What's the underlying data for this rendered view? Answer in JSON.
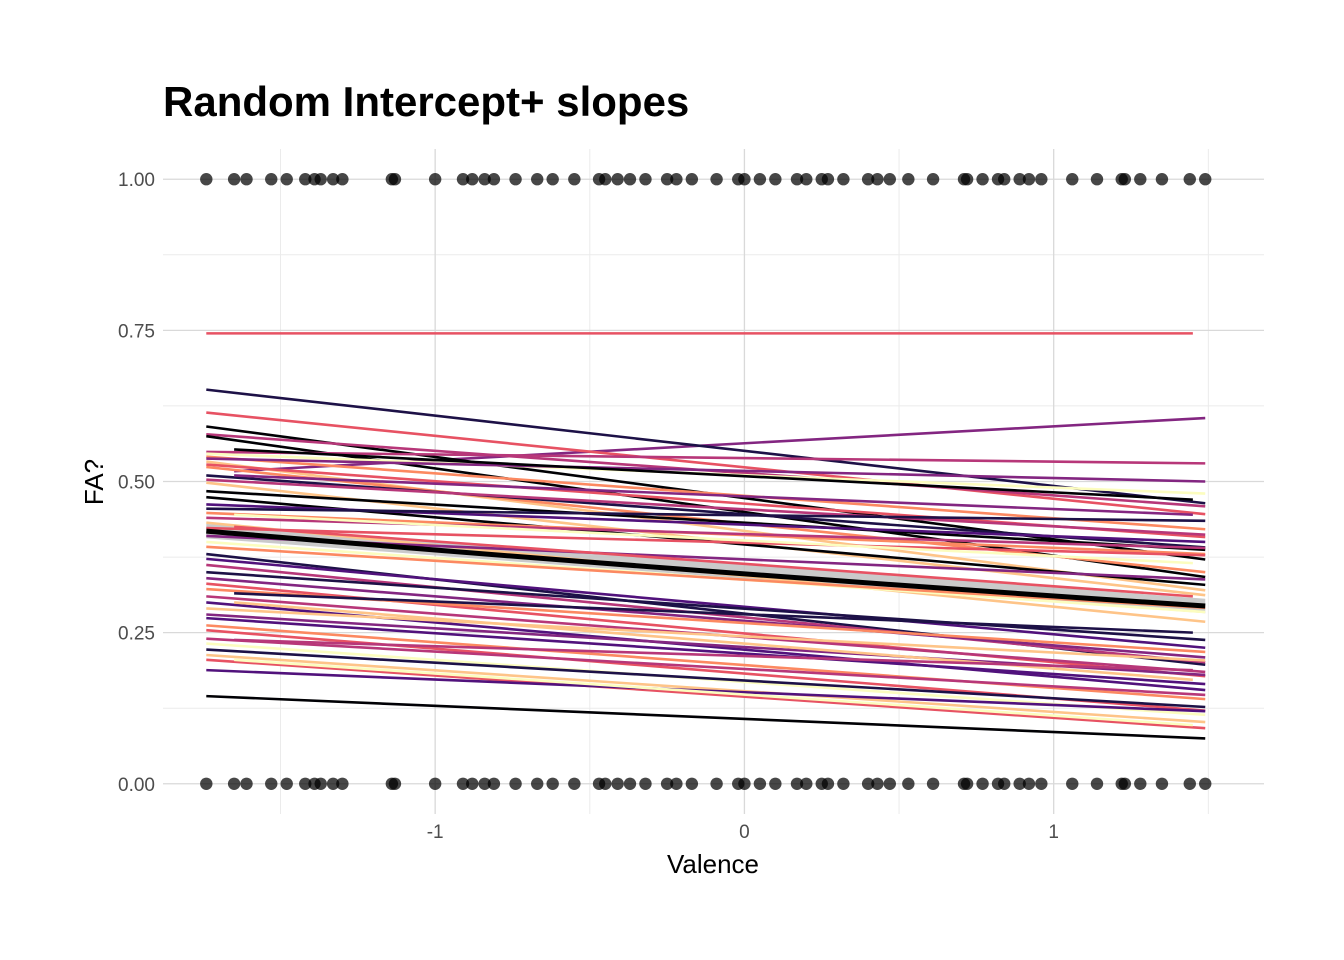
{
  "chart_data": {
    "type": "line",
    "title": "Random Intercept+ slopes",
    "xlabel": "Valence",
    "ylabel": "FA?",
    "xlim": [
      -1.88,
      1.68
    ],
    "ylim": [
      -0.05,
      1.05
    ],
    "x_ticks": [
      "-1",
      "0",
      "1"
    ],
    "x_tick_values": [
      -1,
      0,
      1
    ],
    "y_ticks": [
      "0.00",
      "0.25",
      "0.50",
      "0.75",
      "1.00"
    ],
    "y_tick_values": [
      0,
      0.25,
      0.5,
      0.75,
      1
    ],
    "grid": true,
    "legend": "none",
    "palette": [
      "#000004",
      "#1d1147",
      "#51127c",
      "#832681",
      "#b73779",
      "#e75263",
      "#fc8961",
      "#fec488",
      "#fcfdbf"
    ],
    "points_x": [
      -1.74,
      -1.65,
      -1.61,
      -1.53,
      -1.48,
      -1.42,
      -1.39,
      -1.37,
      -1.33,
      -1.3,
      -1.14,
      -1.13,
      -1.0,
      -0.91,
      -0.88,
      -0.84,
      -0.81,
      -0.74,
      -0.67,
      -0.62,
      -0.55,
      -0.47,
      -0.45,
      -0.41,
      -0.37,
      -0.32,
      -0.25,
      -0.22,
      -0.17,
      -0.09,
      -0.02,
      -0.0,
      0.05,
      0.1,
      0.17,
      0.2,
      0.25,
      0.27,
      0.32,
      0.4,
      0.43,
      0.47,
      0.53,
      0.61,
      0.71,
      0.72,
      0.77,
      0.82,
      0.84,
      0.89,
      0.92,
      0.96,
      1.06,
      1.14,
      1.22,
      1.23,
      1.28,
      1.35,
      1.44,
      1.49
    ],
    "points_y_values": [
      0,
      1
    ],
    "fixed_effect": {
      "x_range": [
        -1.74,
        1.49
      ],
      "y": [
        0.418,
        0.294
      ],
      "band": 0.012
    },
    "random_lines": [
      {
        "x0": -1.74,
        "x1": 1.45,
        "y0": 0.745,
        "y1": 0.745,
        "color": "#e75263"
      },
      {
        "x0": -1.65,
        "x1": 1.49,
        "y0": 0.517,
        "y1": 0.605,
        "color": "#832681"
      },
      {
        "x0": -1.74,
        "x1": 1.49,
        "y0": 0.652,
        "y1": 0.464,
        "color": "#1d1147"
      },
      {
        "x0": -1.74,
        "x1": 1.49,
        "y0": 0.614,
        "y1": 0.446,
        "color": "#e75263"
      },
      {
        "x0": -1.74,
        "x1": 1.49,
        "y0": 0.591,
        "y1": 0.371,
        "color": "#000004"
      },
      {
        "x0": -1.74,
        "x1": 1.49,
        "y0": 0.578,
        "y1": 0.459,
        "color": "#b73779"
      },
      {
        "x0": -1.74,
        "x1": 1.49,
        "y0": 0.575,
        "y1": 0.342,
        "color": "#000004"
      },
      {
        "x0": -1.74,
        "x1": 1.49,
        "y0": 0.549,
        "y1": 0.53,
        "color": "#b73779"
      },
      {
        "x0": -1.74,
        "x1": 1.49,
        "y0": 0.546,
        "y1": 0.48,
        "color": "#fcfdbf"
      },
      {
        "x0": -1.74,
        "x1": 1.49,
        "y0": 0.541,
        "y1": 0.421,
        "color": "#fc8961"
      },
      {
        "x0": -1.74,
        "x1": 1.49,
        "y0": 0.538,
        "y1": 0.5,
        "color": "#832681"
      },
      {
        "x0": -1.74,
        "x1": 1.49,
        "y0": 0.533,
        "y1": 0.32,
        "color": "#fec488"
      },
      {
        "x0": -1.74,
        "x1": 1.49,
        "y0": 0.528,
        "y1": 0.408,
        "color": "#e75263"
      },
      {
        "x0": -1.74,
        "x1": 1.49,
        "y0": 0.524,
        "y1": 0.35,
        "color": "#fc8961"
      },
      {
        "x0": -1.74,
        "x1": 1.49,
        "y0": 0.51,
        "y1": 0.391,
        "color": "#1d1147"
      },
      {
        "x0": -1.74,
        "x1": 1.49,
        "y0": 0.503,
        "y1": 0.412,
        "color": "#b73779"
      },
      {
        "x0": -1.74,
        "x1": 1.49,
        "y0": 0.498,
        "y1": 0.312,
        "color": "#fec488"
      },
      {
        "x0": -1.74,
        "x1": 1.49,
        "y0": 0.484,
        "y1": 0.387,
        "color": "#000004"
      },
      {
        "x0": -1.74,
        "x1": 1.49,
        "y0": 0.474,
        "y1": 0.329,
        "color": "#000004"
      },
      {
        "x0": -1.74,
        "x1": 1.49,
        "y0": 0.462,
        "y1": 0.4,
        "color": "#51127c"
      },
      {
        "x0": -1.74,
        "x1": 1.49,
        "y0": 0.455,
        "y1": 0.435,
        "color": "#1d1147"
      },
      {
        "x0": -1.74,
        "x1": 1.49,
        "y0": 0.448,
        "y1": 0.38,
        "color": "#fc8961"
      },
      {
        "x0": -1.74,
        "x1": 1.49,
        "y0": 0.44,
        "y1": 0.39,
        "color": "#b73779"
      },
      {
        "x0": -1.74,
        "x1": 1.49,
        "y0": 0.432,
        "y1": 0.268,
        "color": "#fec488"
      },
      {
        "x0": -1.74,
        "x1": 1.49,
        "y0": 0.423,
        "y1": 0.378,
        "color": "#e75263"
      },
      {
        "x0": -1.74,
        "x1": 1.49,
        "y0": 0.41,
        "y1": 0.338,
        "color": "#832681"
      },
      {
        "x0": -1.74,
        "x1": 1.49,
        "y0": 0.4,
        "y1": 0.284,
        "color": "#fcfdbf"
      },
      {
        "x0": -1.74,
        "x1": 1.49,
        "y0": 0.392,
        "y1": 0.291,
        "color": "#fc8961"
      },
      {
        "x0": -1.74,
        "x1": 1.49,
        "y0": 0.38,
        "y1": 0.197,
        "color": "#1d1147"
      },
      {
        "x0": -1.74,
        "x1": 1.49,
        "y0": 0.372,
        "y1": 0.225,
        "color": "#51127c"
      },
      {
        "x0": -1.74,
        "x1": 1.49,
        "y0": 0.362,
        "y1": 0.201,
        "color": "#b73779"
      },
      {
        "x0": -1.74,
        "x1": 1.49,
        "y0": 0.35,
        "y1": 0.238,
        "color": "#1d1147"
      },
      {
        "x0": -1.74,
        "x1": 1.49,
        "y0": 0.34,
        "y1": 0.209,
        "color": "#832681"
      },
      {
        "x0": -1.74,
        "x1": 1.49,
        "y0": 0.331,
        "y1": 0.178,
        "color": "#e75263"
      },
      {
        "x0": -1.74,
        "x1": 1.49,
        "y0": 0.322,
        "y1": 0.218,
        "color": "#fc8961"
      },
      {
        "x0": -1.74,
        "x1": 1.49,
        "y0": 0.31,
        "y1": 0.185,
        "color": "#b73779"
      },
      {
        "x0": -1.74,
        "x1": 1.49,
        "y0": 0.3,
        "y1": 0.155,
        "color": "#51127c"
      },
      {
        "x0": -1.74,
        "x1": 1.49,
        "y0": 0.29,
        "y1": 0.204,
        "color": "#fec488"
      },
      {
        "x0": -1.74,
        "x1": 1.49,
        "y0": 0.28,
        "y1": 0.18,
        "color": "#832681"
      },
      {
        "x0": -1.74,
        "x1": 1.49,
        "y0": 0.274,
        "y1": 0.165,
        "color": "#51127c"
      },
      {
        "x0": -1.74,
        "x1": 1.49,
        "y0": 0.262,
        "y1": 0.14,
        "color": "#fc8961"
      },
      {
        "x0": -1.74,
        "x1": 1.49,
        "y0": 0.254,
        "y1": 0.121,
        "color": "#e75263"
      },
      {
        "x0": -1.74,
        "x1": 1.49,
        "y0": 0.24,
        "y1": 0.147,
        "color": "#b73779"
      },
      {
        "x0": -1.74,
        "x1": 1.49,
        "y0": 0.232,
        "y1": 0.114,
        "color": "#fcfdbf"
      },
      {
        "x0": -1.74,
        "x1": 1.49,
        "y0": 0.222,
        "y1": 0.127,
        "color": "#1d1147"
      },
      {
        "x0": -1.74,
        "x1": 1.49,
        "y0": 0.213,
        "y1": 0.102,
        "color": "#fec488"
      },
      {
        "x0": -1.74,
        "x1": 1.49,
        "y0": 0.205,
        "y1": 0.092,
        "color": "#e75263"
      },
      {
        "x0": -1.74,
        "x1": 1.49,
        "y0": 0.188,
        "y1": 0.12,
        "color": "#51127c"
      },
      {
        "x0": -1.74,
        "x1": 1.49,
        "y0": 0.145,
        "y1": 0.075,
        "color": "#000004"
      },
      {
        "x0": -1.65,
        "x1": 1.45,
        "y0": 0.553,
        "y1": 0.47,
        "color": "#000004"
      },
      {
        "x0": -1.65,
        "x1": 1.45,
        "y0": 0.51,
        "y1": 0.445,
        "color": "#832681"
      },
      {
        "x0": -1.65,
        "x1": 1.45,
        "y0": 0.445,
        "y1": 0.365,
        "color": "#fcfdbf"
      },
      {
        "x0": -1.65,
        "x1": 1.45,
        "y0": 0.425,
        "y1": 0.31,
        "color": "#e75263"
      },
      {
        "x0": -1.65,
        "x1": 1.45,
        "y0": 0.315,
        "y1": 0.25,
        "color": "#1d1147"
      },
      {
        "x0": -1.65,
        "x1": 1.45,
        "y0": 0.3,
        "y1": 0.172,
        "color": "#fec488"
      },
      {
        "x0": -1.65,
        "x1": 1.45,
        "y0": 0.238,
        "y1": 0.188,
        "color": "#b73779"
      },
      {
        "x0": -1.65,
        "x1": 1.45,
        "y0": 0.205,
        "y1": 0.097,
        "color": "#fcfdbf"
      }
    ]
  }
}
